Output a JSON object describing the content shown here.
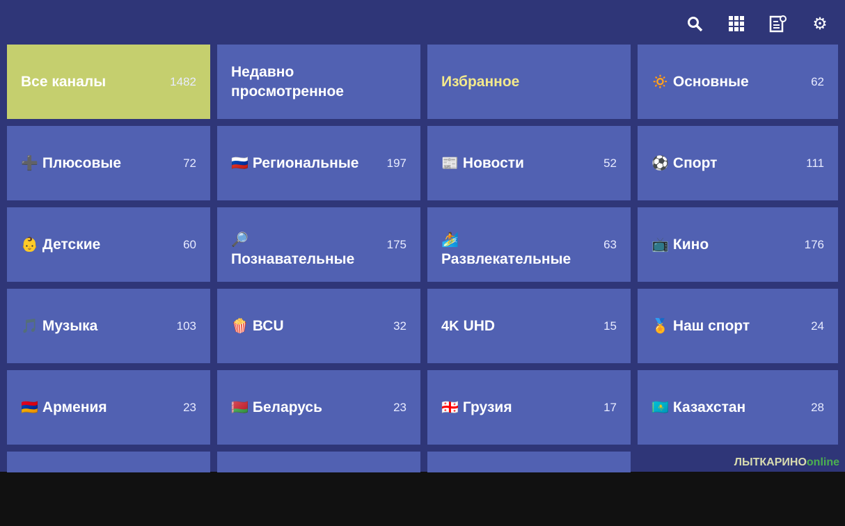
{
  "toolbar": {
    "icons": [
      "search-icon",
      "grid-icon",
      "epg-icon",
      "gear-icon"
    ]
  },
  "tiles": [
    {
      "label": "Все каналы",
      "count": "1482",
      "icon": "",
      "selected": true
    },
    {
      "label": "Недавно просмотренное",
      "count": "",
      "icon": ""
    },
    {
      "label": "Избранное",
      "count": "",
      "icon": ""
    },
    {
      "label": "Основные",
      "count": "62",
      "icon": "🔅"
    },
    {
      "label": "Плюсовые",
      "count": "72",
      "icon": "➕"
    },
    {
      "label": "Региональные",
      "count": "197",
      "icon": "🇷🇺"
    },
    {
      "label": "Новости",
      "count": "52",
      "icon": "📰"
    },
    {
      "label": "Спорт",
      "count": "111",
      "icon": "⚽"
    },
    {
      "label": "Детские",
      "count": "60",
      "icon": "👶"
    },
    {
      "label": "Познавательные",
      "count": "175",
      "icon": "🔎"
    },
    {
      "label": "Развлекательные",
      "count": "63",
      "icon": "🏄"
    },
    {
      "label": "Кино",
      "count": "176",
      "icon": "📺"
    },
    {
      "label": "Музыка",
      "count": "103",
      "icon": "🎵"
    },
    {
      "label": "ВСU",
      "count": "32",
      "icon": "🍿"
    },
    {
      "label": "UHD",
      "count": "15",
      "icon": "4K"
    },
    {
      "label": "Наш спорт",
      "count": "24",
      "icon": "🏅"
    },
    {
      "label": "Армения",
      "count": "23",
      "icon": "🇦🇲"
    },
    {
      "label": "Беларусь",
      "count": "23",
      "icon": "🇧🇾"
    },
    {
      "label": "Грузия",
      "count": "17",
      "icon": "🇬🇪"
    },
    {
      "label": "Казахстан",
      "count": "28",
      "icon": "🇰🇿"
    }
  ],
  "watermark": {
    "main": "ЛЫТКАРИНО",
    "suffix": "online"
  },
  "colors": {
    "background": "#2f3678",
    "tile": "#5161b2",
    "selected": "#c5cf6e",
    "favorite_text": "#f3e98b"
  }
}
